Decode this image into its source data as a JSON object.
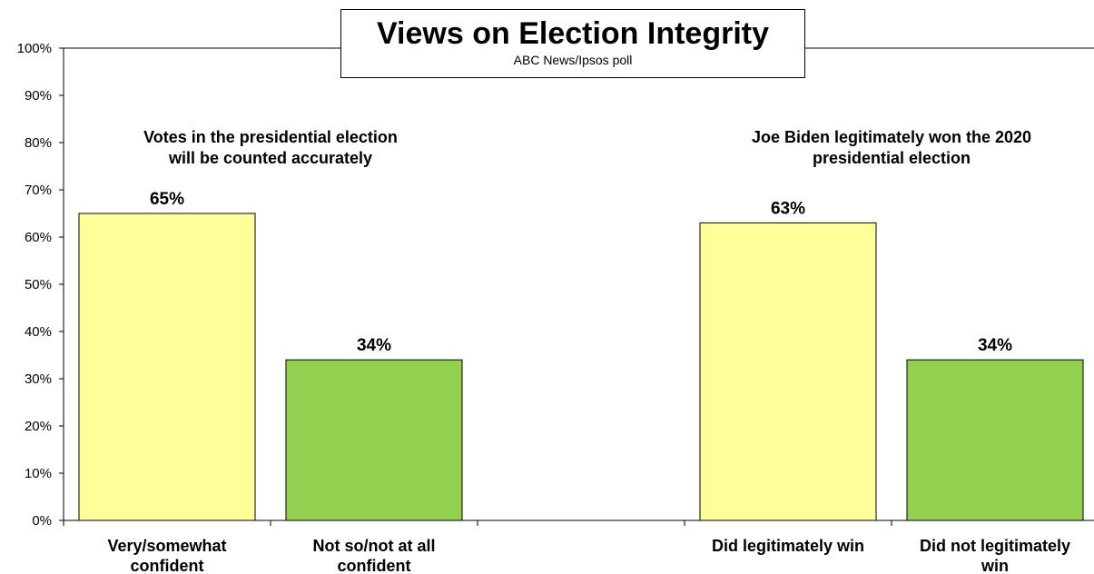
{
  "chart_data": {
    "type": "bar",
    "title": "Views on Election Integrity",
    "subtitle": "ABC News/Ipsos  poll",
    "ylim": [
      0,
      100
    ],
    "yticks": [
      "0%",
      "10%",
      "20%",
      "30%",
      "40%",
      "50%",
      "60%",
      "70%",
      "80%",
      "90%",
      "100%"
    ],
    "grid": false,
    "groups": [
      {
        "label_lines": [
          "Votes in the presidential election",
          "will be counted accurately"
        ],
        "bars": [
          {
            "category_lines": [
              "Very/somewhat",
              "confident"
            ],
            "value": 65,
            "label": "65%",
            "color": "#FFFF99"
          },
          {
            "category_lines": [
              "Not so/not at all",
              "confident"
            ],
            "value": 34,
            "label": "34%",
            "color": "#92D050"
          }
        ]
      },
      {
        "label_lines": [
          "Joe Biden legitimately won the 2020",
          "presidential election"
        ],
        "bars": [
          {
            "category_lines": [
              "Did legitimately win"
            ],
            "value": 63,
            "label": "63%",
            "color": "#FFFF99"
          },
          {
            "category_lines": [
              "Did not legitimately",
              "win"
            ],
            "value": 34,
            "label": "34%",
            "color": "#92D050"
          }
        ]
      }
    ]
  }
}
